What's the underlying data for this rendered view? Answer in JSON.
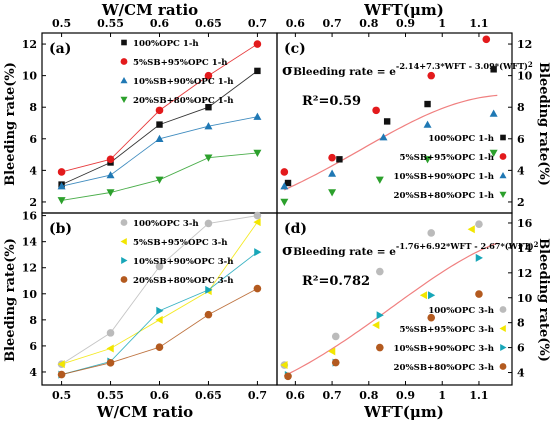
{
  "figure": {
    "top_axis_title_left": "W/CM ratio",
    "top_axis_title_right": "WFT(μm)",
    "bottom_axis_title_left": "W/CM ratio",
    "bottom_axis_title_right": "WFT(μm)",
    "y_axis_label": "Bleeding rate(%)"
  },
  "chart_data": [
    {
      "id": "a",
      "type": "line",
      "panel_label": "(a)",
      "xlabel": "W/CM ratio",
      "ylabel": "Bleeding rate(%)",
      "xlim": [
        0.48,
        0.72
      ],
      "ylim": [
        1.3,
        12.7
      ],
      "xticks": [
        0.5,
        0.55,
        0.6,
        0.65,
        0.7
      ],
      "yticks": [
        2,
        4,
        6,
        8,
        10,
        12
      ],
      "legend_position": "top-center",
      "series": [
        {
          "name": "100%OPC 1-h",
          "color": "#111111",
          "marker": "square",
          "x": [
            0.5,
            0.55,
            0.6,
            0.65,
            0.7
          ],
          "y": [
            3.1,
            4.5,
            6.9,
            8.0,
            10.3
          ]
        },
        {
          "name": "5%SB+95%OPC 1-h",
          "color": "#e31a1c",
          "marker": "circle",
          "x": [
            0.5,
            0.55,
            0.6,
            0.65,
            0.7
          ],
          "y": [
            3.9,
            4.7,
            7.8,
            10.0,
            12.0
          ]
        },
        {
          "name": "10%SB+90%OPC 1-h",
          "color": "#1f78b4",
          "marker": "triangle-up",
          "x": [
            0.5,
            0.55,
            0.6,
            0.65,
            0.7
          ],
          "y": [
            3.0,
            3.7,
            6.0,
            6.8,
            7.4
          ]
        },
        {
          "name": "20%SB+80%OPC 1-h",
          "color": "#2ca02c",
          "marker": "triangle-down",
          "x": [
            0.5,
            0.55,
            0.6,
            0.65,
            0.7
          ],
          "y": [
            2.1,
            2.6,
            3.4,
            4.8,
            5.1
          ]
        }
      ]
    },
    {
      "id": "b",
      "type": "line",
      "panel_label": "(b)",
      "xlabel": "W/CM ratio",
      "ylabel": "Bleeding rate(%)",
      "xlim": [
        0.48,
        0.72
      ],
      "ylim": [
        3,
        16.2
      ],
      "xticks": [
        0.5,
        0.55,
        0.6,
        0.65,
        0.7
      ],
      "yticks": [
        4,
        6,
        8,
        10,
        12,
        14,
        16
      ],
      "legend_position": "top-center",
      "series": [
        {
          "name": "100%OPC 3-h",
          "color": "#bbbbbb",
          "marker": "circle",
          "x": [
            0.5,
            0.55,
            0.6,
            0.65,
            0.7
          ],
          "y": [
            4.6,
            7.0,
            12.1,
            15.4,
            16.0
          ]
        },
        {
          "name": "5%SB+95%OPC 3-h",
          "color": "#f2e600",
          "marker": "triangle-left",
          "x": [
            0.5,
            0.55,
            0.6,
            0.65,
            0.7
          ],
          "y": [
            4.6,
            5.8,
            8.0,
            10.2,
            15.5
          ]
        },
        {
          "name": "10%SB+90%OPC 3-h",
          "color": "#17a6b8",
          "marker": "triangle-right",
          "x": [
            0.5,
            0.55,
            0.6,
            0.65,
            0.7
          ],
          "y": [
            3.8,
            4.8,
            8.7,
            10.3,
            13.2
          ]
        },
        {
          "name": "20%SB+80%OPC 3-h",
          "color": "#b35a1f",
          "marker": "circle",
          "x": [
            0.5,
            0.55,
            0.6,
            0.65,
            0.7
          ],
          "y": [
            3.8,
            4.7,
            5.9,
            8.4,
            10.4
          ]
        }
      ]
    },
    {
      "id": "c",
      "type": "scatter",
      "panel_label": "(c)",
      "xlabel": "WFT(μm)",
      "ylabel": "Bleeding rate(%)",
      "xlim": [
        0.55,
        1.19
      ],
      "ylim": [
        1.3,
        12.7
      ],
      "xticks": [
        0.6,
        0.7,
        0.8,
        0.9,
        1.0,
        1.1
      ],
      "yticks": [
        2,
        4,
        6,
        8,
        10,
        12
      ],
      "legend_position": "bottom-right",
      "equation_prefix": "σ",
      "equation_subscript": "Bleeding rate",
      "equation_body": "= e",
      "equation_exponent": "-2.14+7.3*WFT - 3.09*(WFT)",
      "equation_exponent_power": "2",
      "r2_text": "R²=0.59",
      "fit_curve": {
        "color": "#f08080",
        "a": -2.14,
        "b": 7.3,
        "c": -3.09
      },
      "series": [
        {
          "name": "100%OPC 1-h",
          "color": "#111111",
          "marker": "square",
          "x": [
            0.58,
            0.72,
            0.85,
            0.96,
            1.14
          ],
          "y": [
            3.2,
            4.7,
            7.1,
            8.2,
            10.4
          ]
        },
        {
          "name": "5%SB+95%OPC 1-h",
          "color": "#e31a1c",
          "marker": "circle",
          "x": [
            0.57,
            0.7,
            0.82,
            0.97,
            1.12
          ],
          "y": [
            3.9,
            4.8,
            7.8,
            10.0,
            12.3
          ]
        },
        {
          "name": "10%SB+90%OPC 1-h",
          "color": "#1f78b4",
          "marker": "triangle-up",
          "x": [
            0.57,
            0.7,
            0.84,
            0.96,
            1.14
          ],
          "y": [
            3.0,
            3.8,
            6.1,
            6.9,
            7.6
          ]
        },
        {
          "name": "20%SB+80%OPC 1-h",
          "color": "#2ca02c",
          "marker": "triangle-down",
          "x": [
            0.57,
            0.7,
            0.83,
            0.96,
            1.14
          ],
          "y": [
            2.0,
            2.6,
            3.4,
            4.7,
            5.1
          ]
        }
      ]
    },
    {
      "id": "d",
      "type": "scatter",
      "panel_label": "(d)",
      "xlabel": "WFT(μm)",
      "ylabel": "Bleeding rate(%)",
      "xlim": [
        0.55,
        1.19
      ],
      "ylim": [
        3,
        16.8
      ],
      "xticks": [
        0.6,
        0.7,
        0.8,
        0.9,
        1.0,
        1.1
      ],
      "yticks": [
        4,
        6,
        8,
        10,
        12,
        14,
        16
      ],
      "legend_position": "bottom-right",
      "equation_prefix": "σ",
      "equation_subscript": "Bleeding rate",
      "equation_body": "= e",
      "equation_exponent": "-1.76+6.92*WFT - 2.67*(WFT)",
      "equation_exponent_power": "2",
      "r2_text": "R²=0.782",
      "fit_curve": {
        "color": "#f08080",
        "a": -1.76,
        "b": 6.92,
        "c": -2.67
      },
      "series": [
        {
          "name": "100%OPC 3-h",
          "color": "#bbbbbb",
          "marker": "circle",
          "x": [
            0.57,
            0.71,
            0.83,
            0.97,
            1.1
          ],
          "y": [
            4.6,
            6.9,
            12.1,
            15.2,
            15.9
          ]
        },
        {
          "name": "5%SB+95%OPC 3-h",
          "color": "#f2e600",
          "marker": "triangle-left",
          "x": [
            0.57,
            0.7,
            0.82,
            0.95,
            1.08
          ],
          "y": [
            4.6,
            5.7,
            7.8,
            10.2,
            15.5
          ]
        },
        {
          "name": "10%SB+90%OPC 3-h",
          "color": "#17a6b8",
          "marker": "triangle-right",
          "x": [
            0.58,
            0.71,
            0.83,
            0.97,
            1.1
          ],
          "y": [
            3.8,
            4.8,
            8.6,
            10.2,
            13.2
          ]
        },
        {
          "name": "20%SB+80%OPC 3-h",
          "color": "#b35a1f",
          "marker": "circle",
          "x": [
            0.58,
            0.71,
            0.83,
            0.97,
            1.1
          ],
          "y": [
            3.7,
            4.8,
            6.0,
            8.4,
            10.3
          ]
        }
      ]
    }
  ]
}
